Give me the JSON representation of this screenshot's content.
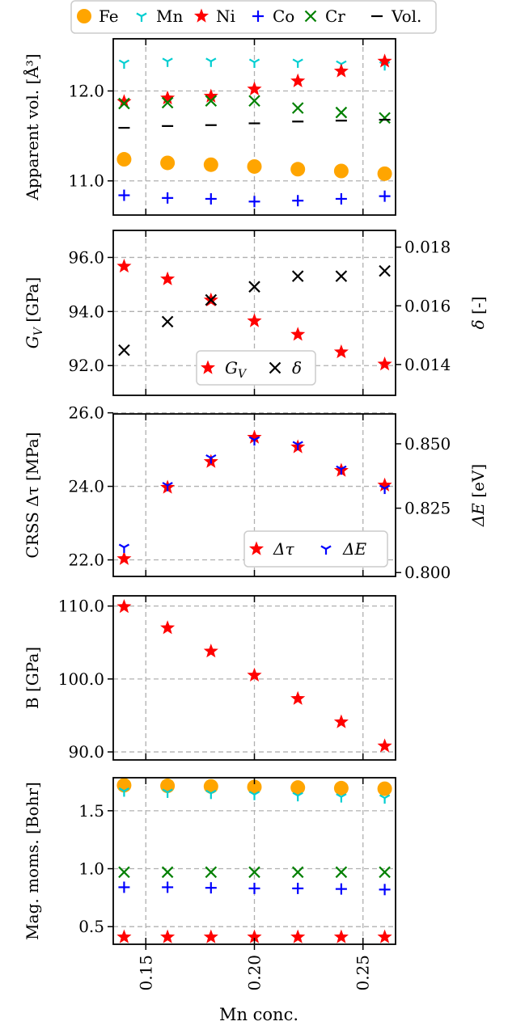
{
  "figure": {
    "xlabel": "Mn conc.",
    "xticks": [
      0.15,
      0.2,
      0.25
    ],
    "xtick_labels": [
      "0.15",
      "0.20",
      "0.25"
    ],
    "xlim": [
      0.135,
      0.265
    ],
    "legend": {
      "placement": "top-center",
      "items": [
        {
          "label": "Fe",
          "marker": "circle",
          "color": "#FFA500"
        },
        {
          "label": "Mn",
          "marker": "tri_down",
          "color": "#00CED1"
        },
        {
          "label": "Ni",
          "marker": "star",
          "color": "#FF0000"
        },
        {
          "label": "Co",
          "marker": "plus",
          "color": "#0000FF"
        },
        {
          "label": "Cr",
          "marker": "x",
          "color": "#008000"
        },
        {
          "label": "Vol.",
          "marker": "hline",
          "color": "#000000"
        }
      ]
    }
  },
  "chart_data": [
    {
      "type": "scatter",
      "ylabel": "Apparent vol. [Å³]",
      "ylim": [
        10.62,
        12.58
      ],
      "yticks": [
        11.0,
        12.0
      ],
      "ytick_labels": [
        "11.0",
        "12.0"
      ],
      "grid": true,
      "x": [
        0.14,
        0.16,
        0.18,
        0.2,
        0.22,
        0.24,
        0.26
      ],
      "series": [
        {
          "name": "Fe",
          "marker": "circle",
          "color": "#FFA500",
          "values": [
            11.24,
            11.2,
            11.18,
            11.16,
            11.13,
            11.11,
            11.08
          ]
        },
        {
          "name": "Mn",
          "marker": "tri_down",
          "color": "#00CED1",
          "values": [
            12.31,
            12.33,
            12.33,
            12.32,
            12.32,
            12.3,
            12.29
          ]
        },
        {
          "name": "Ni",
          "marker": "star",
          "color": "#FF0000",
          "values": [
            11.88,
            11.92,
            11.94,
            12.02,
            12.11,
            12.22,
            12.33
          ]
        },
        {
          "name": "Co",
          "marker": "plus",
          "color": "#0000FF",
          "values": [
            10.84,
            10.81,
            10.8,
            10.77,
            10.78,
            10.8,
            10.83
          ]
        },
        {
          "name": "Cr",
          "marker": "x",
          "color": "#008000",
          "values": [
            11.86,
            11.87,
            11.89,
            11.89,
            11.81,
            11.76,
            11.7
          ]
        },
        {
          "name": "Vol.",
          "marker": "hline",
          "color": "#000000",
          "values": [
            11.59,
            11.61,
            11.62,
            11.64,
            11.66,
            11.67,
            11.68
          ]
        }
      ]
    },
    {
      "type": "scatter",
      "ylabel": "G_V [GPa]",
      "ylabel_main": "G",
      "ylabel_sub": "V",
      "ylabel_unit": "[GPa]",
      "ylim": [
        90.9,
        97.0
      ],
      "yticks": [
        92.0,
        94.0,
        96.0
      ],
      "ytick_labels": [
        "92.0",
        "94.0",
        "96.0"
      ],
      "y2label": "δ [-]",
      "y2label_main": "δ",
      "y2label_unit": "[-]",
      "y2lim": [
        0.01295,
        0.01857
      ],
      "y2ticks": [
        0.014,
        0.016,
        0.018
      ],
      "y2tick_labels": [
        "0.014",
        "0.016",
        "0.018"
      ],
      "grid": true,
      "x": [
        0.14,
        0.16,
        0.18,
        0.2,
        0.22,
        0.24,
        0.26
      ],
      "series": [
        {
          "name": "G_V",
          "legend_main": "G",
          "legend_sub": "V",
          "axis": "left",
          "marker": "star",
          "color": "#FF0000",
          "values": [
            95.67,
            95.2,
            94.42,
            93.65,
            93.15,
            92.5,
            92.05
          ]
        },
        {
          "name": "δ",
          "legend_main": "δ",
          "axis": "right",
          "marker": "x",
          "color": "#000000",
          "values": [
            0.01449,
            0.01546,
            0.0162,
            0.01665,
            0.01701,
            0.01701,
            0.01719
          ]
        }
      ],
      "legend": {
        "placement": "lower-center"
      }
    },
    {
      "type": "scatter",
      "ylabel": "CRSS Δτ [MPa]",
      "ylim": [
        21.55,
        25.97
      ],
      "yticks": [
        22.0,
        24.0,
        26.0
      ],
      "ytick_labels": [
        "22.0",
        "24.0",
        "26.0"
      ],
      "y2label": "ΔE [eV]",
      "y2label_main": "ΔE",
      "y2label_unit": "[eV]",
      "y2lim": [
        0.7985,
        0.8616
      ],
      "y2ticks": [
        0.8,
        0.825,
        0.85
      ],
      "y2tick_labels": [
        "0.800",
        "0.825",
        "0.850"
      ],
      "grid": true,
      "x": [
        0.14,
        0.16,
        0.18,
        0.2,
        0.22,
        0.24,
        0.26
      ],
      "series": [
        {
          "name": "Δτ",
          "legend_main": "Δτ",
          "axis": "left",
          "marker": "star",
          "color": "#FF0000",
          "values": [
            22.03,
            23.97,
            24.67,
            25.33,
            25.07,
            24.43,
            24.03
          ]
        },
        {
          "name": "ΔE",
          "legend_main": "ΔE",
          "axis": "right",
          "marker": "tri_down",
          "color": "#0000FF",
          "values": [
            0.8098,
            0.8338,
            0.8445,
            0.8515,
            0.8497,
            0.8402,
            0.8327
          ]
        }
      ],
      "legend": {
        "placement": "lower-right"
      }
    },
    {
      "type": "scatter",
      "ylabel": "B [GPa]",
      "ylim": [
        88.9,
        111.4
      ],
      "yticks": [
        90.0,
        100.0,
        110.0
      ],
      "ytick_labels": [
        "90.0",
        "100.0",
        "110.0"
      ],
      "grid": true,
      "x": [
        0.14,
        0.16,
        0.18,
        0.2,
        0.22,
        0.24,
        0.26
      ],
      "series": [
        {
          "name": "B",
          "marker": "star",
          "color": "#FF0000",
          "values": [
            109.9,
            107.0,
            103.8,
            100.5,
            97.3,
            94.1,
            90.8
          ]
        }
      ]
    },
    {
      "type": "scatter",
      "ylabel": "Mag. moms. [Bohr]",
      "ylim": [
        0.348,
        1.785
      ],
      "yticks": [
        0.5,
        1.0,
        1.5
      ],
      "ytick_labels": [
        "0.5",
        "1.0",
        "1.5"
      ],
      "grid": true,
      "x": [
        0.14,
        0.16,
        0.18,
        0.2,
        0.22,
        0.24,
        0.26
      ],
      "series": [
        {
          "name": "Fe",
          "marker": "circle",
          "color": "#FFA500",
          "values": [
            1.72,
            1.715,
            1.71,
            1.705,
            1.7,
            1.695,
            1.69
          ]
        },
        {
          "name": "Mn",
          "marker": "tri_down",
          "color": "#00CED1",
          "values": [
            1.67,
            1.66,
            1.65,
            1.64,
            1.63,
            1.62,
            1.61
          ]
        },
        {
          "name": "Ni",
          "marker": "star",
          "color": "#FF0000",
          "values": [
            0.41,
            0.41,
            0.41,
            0.41,
            0.41,
            0.41,
            0.41
          ]
        },
        {
          "name": "Co",
          "marker": "plus",
          "color": "#0000FF",
          "values": [
            0.84,
            0.84,
            0.835,
            0.83,
            0.83,
            0.825,
            0.82
          ]
        },
        {
          "name": "Cr",
          "marker": "x",
          "color": "#008000",
          "values": [
            0.97,
            0.97,
            0.97,
            0.97,
            0.97,
            0.97,
            0.97
          ]
        }
      ]
    }
  ]
}
